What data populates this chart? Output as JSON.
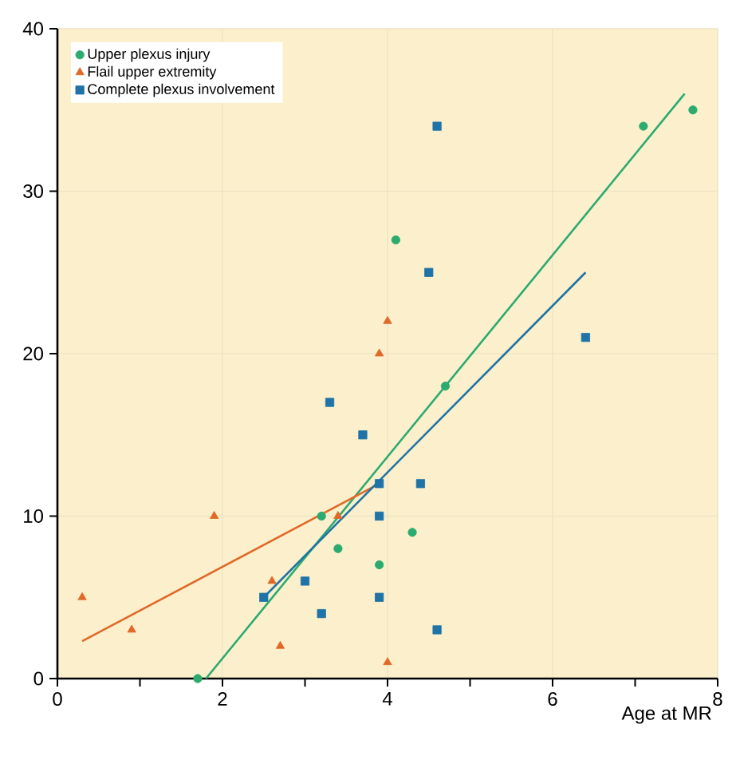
{
  "chart_data": {
    "type": "scatter",
    "xlabel": "Age at MR",
    "xlim": [
      0,
      8
    ],
    "ylim": [
      0,
      40
    ],
    "xticks": [
      0,
      {
        "value": 1,
        "label": null
      },
      2,
      {
        "value": 3,
        "label": null
      },
      4,
      {
        "value": 5,
        "label": null
      },
      6,
      {
        "value": 7,
        "label": null
      },
      8
    ],
    "yticks": [
      0,
      10,
      20,
      30,
      40
    ],
    "grid": true,
    "legend": "top left",
    "series": [
      {
        "name": "Upper plexus injury",
        "color": "#2bab6f",
        "marker": "circle",
        "x": [
          1.7,
          3.2,
          3.4,
          3.9,
          4.1,
          4.3,
          4.7,
          7.1,
          7.7
        ],
        "values": [
          0,
          10,
          8,
          7,
          27,
          9,
          18,
          34,
          35
        ]
      },
      {
        "name": "Flail upper extremity",
        "color": "#e0692a",
        "marker": "triangle",
        "x": [
          0.3,
          0.9,
          1.9,
          2.6,
          2.7,
          3.4,
          3.9,
          4.0,
          4.0
        ],
        "values": [
          5,
          3,
          10,
          6,
          2,
          10,
          20,
          22,
          1
        ]
      },
      {
        "name": "Complete plexus involvement",
        "color": "#1f73a6",
        "marker": "square",
        "x": [
          2.5,
          3.0,
          3.2,
          3.3,
          3.7,
          3.9,
          3.9,
          3.9,
          4.4,
          4.5,
          4.6,
          4.6,
          6.4
        ],
        "values": [
          5,
          6,
          4,
          17,
          15,
          12,
          10,
          5,
          12,
          25,
          34,
          3,
          21
        ]
      },
      {
        "type": "line",
        "color": "#2bab6f",
        "x": [
          1.8,
          7.6
        ],
        "values": [
          0,
          36
        ]
      },
      {
        "type": "line",
        "color": "#e0692a",
        "x": [
          0.3,
          3.9
        ],
        "values": [
          2.3,
          12
        ]
      },
      {
        "type": "line",
        "color": "#1f73a6",
        "x": [
          2.5,
          6.4
        ],
        "values": [
          5,
          25
        ]
      }
    ]
  }
}
